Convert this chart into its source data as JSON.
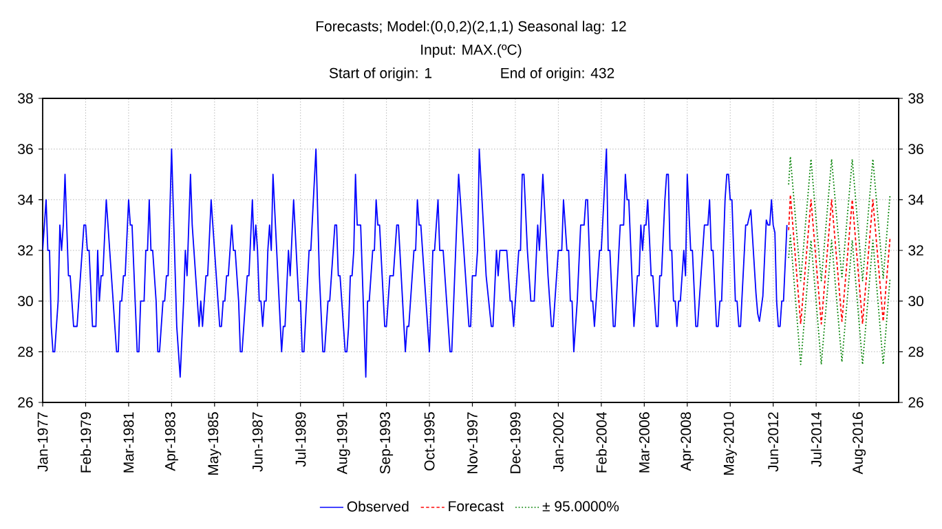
{
  "chart_data": {
    "type": "line",
    "title": "Forecasts; Model:(0,0,2)(2,1,1) Seasonal lag: 12",
    "subtitle": "Input: MAX.(ºC)",
    "annotations": [
      "Start of origin: 1",
      "End of origin: 432"
    ],
    "xlim": [
      "1977-01",
      "2018-07"
    ],
    "xticks": [
      {
        "value": "1977-01",
        "label": "Jan-1977"
      },
      {
        "value": "1979-02",
        "label": "Feb-1979"
      },
      {
        "value": "1981-03",
        "label": "Mar-1981"
      },
      {
        "value": "1983-04",
        "label": "Apr-1983"
      },
      {
        "value": "1985-05",
        "label": "May-1985"
      },
      {
        "value": "1987-06",
        "label": "Jun-1987"
      },
      {
        "value": "1989-07",
        "label": "Jul-1989"
      },
      {
        "value": "1991-08",
        "label": "Aug-1991"
      },
      {
        "value": "1993-09",
        "label": "Sep-1993"
      },
      {
        "value": "1995-10",
        "label": "Oct-1995"
      },
      {
        "value": "1997-11",
        "label": "Nov-1997"
      },
      {
        "value": "1999-12",
        "label": "Dec-1999"
      },
      {
        "value": "2002-01",
        "label": "Jan-2002"
      },
      {
        "value": "2004-02",
        "label": "Feb-2004"
      },
      {
        "value": "2006-03",
        "label": "Mar-2006"
      },
      {
        "value": "2008-04",
        "label": "Apr-2008"
      },
      {
        "value": "2010-05",
        "label": "May-2010"
      },
      {
        "value": "2012-06",
        "label": "Jun-2012"
      },
      {
        "value": "2014-07",
        "label": "Jul-2014"
      },
      {
        "value": "2016-08",
        "label": "Aug-2016"
      }
    ],
    "ylim": [
      26,
      38
    ],
    "yticks": [
      26,
      28,
      30,
      32,
      34,
      36,
      38
    ],
    "y2lim": [
      26,
      38
    ],
    "y2ticks": [
      26,
      28,
      30,
      32,
      34,
      36,
      38
    ],
    "grid": true,
    "legend": "bottom",
    "series": [
      {
        "name": "Observed",
        "color": "#0000ff",
        "line_style": "solid",
        "x": [
          "1977-01",
          "1977-03",
          "1977-04",
          "1977-05",
          "1977-06",
          "1977-07",
          "1977-08",
          "1977-10",
          "1977-11",
          "1977-12",
          "1978-01",
          "1978-02",
          "1978-04",
          "1978-05",
          "1978-07",
          "1978-09",
          "1979-01",
          "1979-02",
          "1979-03",
          "1979-04",
          "1979-06",
          "1979-08",
          "1979-09",
          "1979-10",
          "1979-11",
          "1979-12",
          "1980-02",
          "1980-08",
          "1980-09",
          "1980-10",
          "1980-11",
          "1980-12",
          "1981-01",
          "1981-03",
          "1981-04",
          "1981-05",
          "1981-08",
          "1981-09",
          "1981-10",
          "1981-12",
          "1982-01",
          "1982-02",
          "1982-03",
          "1982-04",
          "1982-05",
          "1982-07",
          "1982-08",
          "1982-09",
          "1982-11",
          "1982-12",
          "1983-01",
          "1983-02",
          "1983-04",
          "1983-07",
          "1983-09",
          "1983-11",
          "1983-12",
          "1984-01",
          "1984-03",
          "1984-04",
          "1984-08",
          "1984-09",
          "1984-10",
          "1984-12",
          "1985-01",
          "1985-03",
          "1985-08",
          "1985-09",
          "1985-10",
          "1985-11",
          "1985-12",
          "1986-01",
          "1986-03",
          "1986-04",
          "1986-05",
          "1986-07",
          "1986-08",
          "1986-09",
          "1986-12",
          "1987-01",
          "1987-03",
          "1987-04",
          "1987-05",
          "1987-06",
          "1987-07",
          "1987-08",
          "1987-09",
          "1987-10",
          "1987-11",
          "1987-12",
          "1988-01",
          "1988-02",
          "1988-03",
          "1988-08",
          "1988-09",
          "1988-10",
          "1988-12",
          "1989-01",
          "1989-03",
          "1989-06",
          "1989-07",
          "1989-08",
          "1989-09",
          "1989-12",
          "1990-01",
          "1990-04",
          "1990-06",
          "1990-08",
          "1990-09",
          "1990-11",
          "1990-12",
          "1991-03",
          "1991-04",
          "1991-05",
          "1991-06",
          "1991-09",
          "1991-10",
          "1991-11",
          "1991-12",
          "1992-01",
          "1992-02",
          "1992-03",
          "1992-04",
          "1992-06",
          "1992-09",
          "1992-10",
          "1992-11",
          "1993-01",
          "1993-02",
          "1993-03",
          "1993-04",
          "1993-05",
          "1993-08",
          "1993-09",
          "1993-11",
          "1994-01",
          "1994-03",
          "1994-04",
          "1994-08",
          "1994-09",
          "1994-10",
          "1995-01",
          "1995-02",
          "1995-03",
          "1995-04",
          "1995-05",
          "1995-10",
          "1995-12",
          "1996-01",
          "1996-03",
          "1996-04",
          "1996-06",
          "1996-10",
          "1996-11",
          "1997-03",
          "1997-09",
          "1997-10",
          "1997-11",
          "1998-01",
          "1998-02",
          "1998-03",
          "1998-07",
          "1998-10",
          "1998-11",
          "1999-01",
          "1999-02",
          "1999-03",
          "1999-07",
          "1999-09",
          "1999-10",
          "1999-11",
          "2000-02",
          "2000-03",
          "2000-04",
          "2000-05",
          "2000-07",
          "2000-09",
          "2000-11",
          "2001-01",
          "2001-02",
          "2001-04",
          "2001-07",
          "2001-09",
          "2001-10",
          "2002-01",
          "2002-03",
          "2002-04",
          "2002-06",
          "2002-07",
          "2002-08",
          "2002-09",
          "2002-10",
          "2002-12",
          "2003-02",
          "2003-04",
          "2003-05",
          "2003-06",
          "2003-08",
          "2003-09",
          "2003-10",
          "2004-01",
          "2004-02",
          "2004-05",
          "2004-06",
          "2004-07",
          "2004-09",
          "2004-10",
          "2005-01",
          "2005-03",
          "2005-04",
          "2005-05",
          "2005-06",
          "2005-09",
          "2005-11",
          "2005-12",
          "2006-01",
          "2006-02",
          "2006-03",
          "2006-04",
          "2006-05",
          "2006-07",
          "2006-08",
          "2006-10",
          "2006-11",
          "2006-12",
          "2007-01",
          "2007-03",
          "2007-04",
          "2007-05",
          "2007-06",
          "2007-07",
          "2007-08",
          "2007-09",
          "2007-10",
          "2007-11",
          "2007-12",
          "2008-02",
          "2008-03",
          "2008-04",
          "2008-06",
          "2008-07",
          "2008-09",
          "2008-10",
          "2009-02",
          "2009-04",
          "2009-05",
          "2009-06",
          "2009-07",
          "2009-09",
          "2009-10",
          "2009-11",
          "2009-12",
          "2010-02",
          "2010-03",
          "2010-04",
          "2010-05",
          "2010-06",
          "2010-08",
          "2010-09",
          "2010-10",
          "2010-11",
          "2011-02",
          "2011-03",
          "2011-05",
          "2011-08",
          "2011-09",
          "2011-10",
          "2011-12",
          "2012-02",
          "2012-03",
          "2012-04",
          "2012-05",
          "2012-06",
          "2012-07",
          "2012-08",
          "2012-09",
          "2012-10",
          "2012-11",
          "2012-12",
          "2013-02"
        ],
        "values": [
          32,
          34,
          32,
          32,
          29,
          28,
          28,
          30,
          33,
          32,
          33,
          35,
          31,
          31,
          29,
          29,
          33,
          33,
          32,
          32,
          29,
          29,
          32,
          30,
          31,
          31,
          34,
          28,
          28,
          30,
          30,
          31,
          31,
          34,
          33,
          33,
          28,
          28,
          30,
          30,
          32,
          32,
          34,
          32,
          32,
          30,
          28,
          28,
          30,
          30,
          31,
          31,
          36,
          29,
          27,
          30,
          32,
          31,
          35,
          33,
          29,
          30,
          29,
          31,
          31,
          34,
          29,
          29,
          30,
          30,
          31,
          31,
          33,
          32,
          32,
          30,
          28,
          28,
          31,
          31,
          34,
          32,
          33,
          32,
          30,
          30,
          29,
          30,
          30,
          32,
          33,
          32,
          35,
          28,
          29,
          29,
          32,
          31,
          34,
          30,
          30,
          28,
          28,
          32,
          32,
          36,
          31,
          28,
          28,
          30,
          30,
          33,
          33,
          31,
          31,
          28,
          28,
          29,
          31,
          31,
          32,
          35,
          33,
          33,
          27,
          30,
          30,
          32,
          32,
          34,
          33,
          33,
          29,
          29,
          31,
          31,
          33,
          33,
          28,
          29,
          29,
          32,
          32,
          34,
          33,
          33,
          28,
          32,
          32,
          34,
          32,
          32,
          28,
          28,
          35,
          29,
          29,
          31,
          31,
          32,
          36,
          31,
          29,
          29,
          32,
          31,
          32,
          32,
          30,
          30,
          29,
          32,
          32,
          35,
          35,
          32,
          30,
          30,
          33,
          32,
          35,
          31,
          29,
          29,
          32,
          32,
          34,
          32,
          32,
          30,
          30,
          28,
          30,
          33,
          33,
          34,
          34,
          30,
          30,
          29,
          32,
          32,
          36,
          32,
          32,
          29,
          29,
          33,
          33,
          35,
          34,
          34,
          29,
          31,
          31,
          33,
          32,
          33,
          33,
          34,
          31,
          31,
          29,
          29,
          31,
          31,
          34,
          35,
          35,
          32,
          32,
          30,
          30,
          29,
          30,
          30,
          32,
          31,
          35,
          32,
          32,
          29,
          29,
          33,
          33,
          34,
          32,
          32,
          29,
          29,
          30,
          30,
          34,
          35,
          35,
          34,
          34,
          30,
          30,
          29,
          29,
          33,
          33,
          33.6,
          30.3,
          29.5,
          29.2,
          30.2,
          33.2,
          33,
          33,
          34,
          33,
          32.7,
          30,
          29,
          29,
          30,
          30,
          33
        ]
      },
      {
        "name": "Forecast",
        "color": "#ff0000",
        "line_style": "dashed",
        "x": [
          "2013-03",
          "2013-04",
          "2013-10",
          "2014-04",
          "2014-10",
          "2015-04",
          "2015-10",
          "2016-04",
          "2016-10",
          "2017-04",
          "2017-10",
          "2018-02"
        ],
        "values": [
          32.8,
          34.2,
          29.1,
          34,
          29.1,
          34,
          29.2,
          34,
          29.1,
          34,
          29.2,
          32.5
        ]
      },
      {
        "name": "± 95.0000%",
        "color": "#008000",
        "line_style": "dotted",
        "x": [
          "2013-03",
          "2013-04",
          "2013-10",
          "2014-04",
          "2014-10",
          "2015-04",
          "2015-10",
          "2016-04",
          "2016-10",
          "2017-04",
          "2017-10",
          "2018-02"
        ],
        "values": [
          34.6,
          35.7,
          30.8,
          35.6,
          30.8,
          35.6,
          30.9,
          35.6,
          30.8,
          35.6,
          30.9,
          34.2
        ]
      },
      {
        "color": "#008000",
        "line_style": "dotted",
        "x": [
          "2013-03",
          "2013-04",
          "2013-10",
          "2014-04",
          "2014-10",
          "2015-04",
          "2015-10",
          "2016-04",
          "2016-10",
          "2017-04",
          "2017-10",
          "2018-02"
        ],
        "values": [
          31.7,
          32.6,
          27.5,
          32.4,
          27.5,
          32.4,
          27.6,
          32.4,
          27.5,
          32.4,
          27.5,
          30.9
        ]
      }
    ]
  }
}
